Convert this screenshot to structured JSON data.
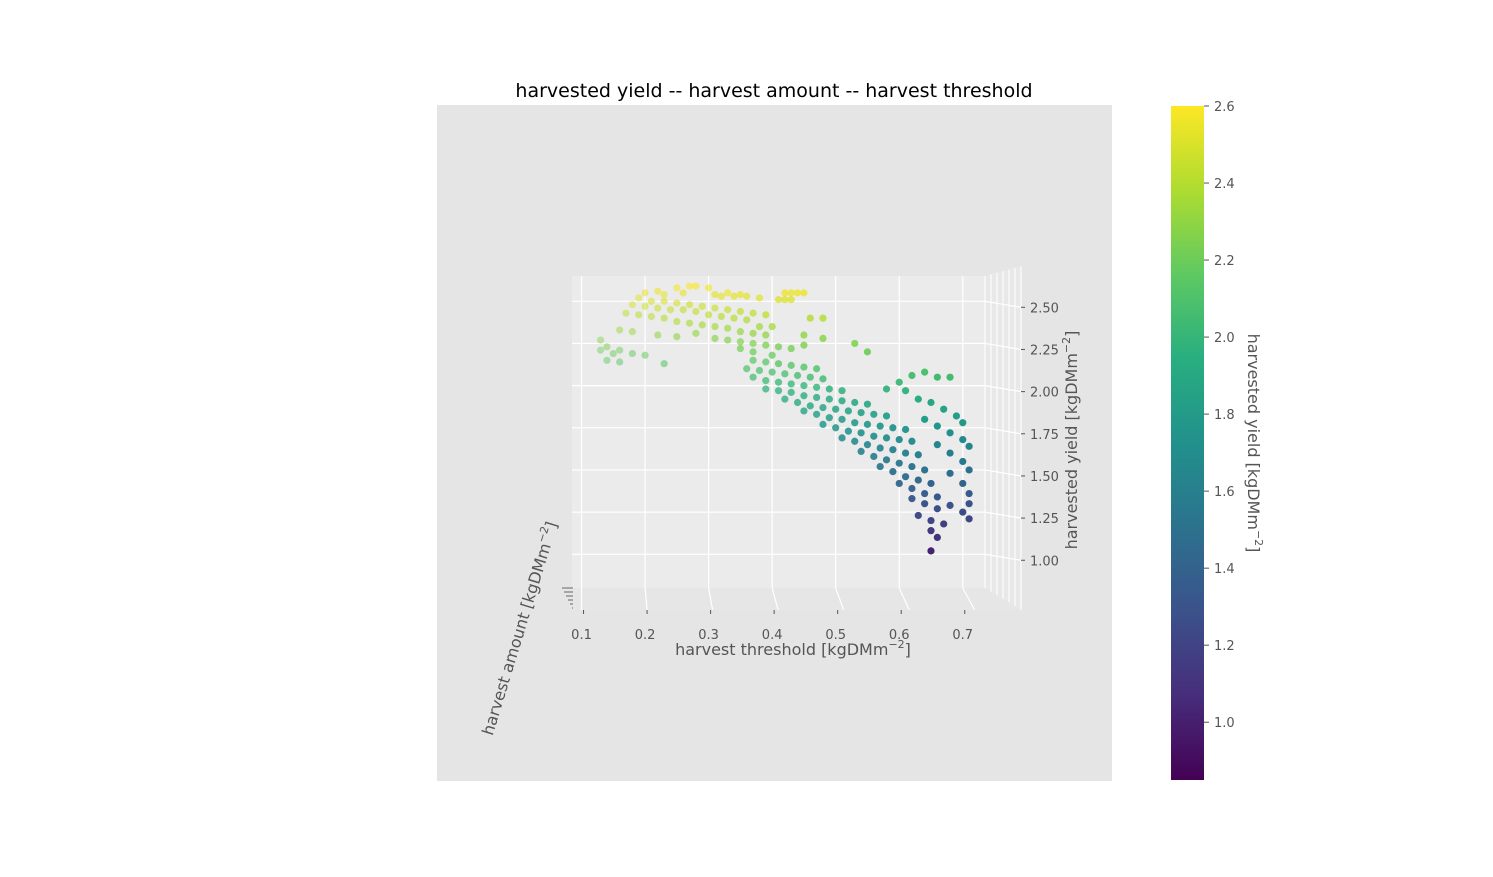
{
  "chart_data": {
    "type": "scatter",
    "projection": "3d",
    "title": "harvested yield -- harvest amount -- harvest threshold",
    "xlabel": "harvest threshold [kgDMm",
    "xlabel_exp": "−2",
    "xlabel_end": "]",
    "ylabel": "harvest amount [kgDMm",
    "ylabel_exp": "−2",
    "ylabel_end": "]",
    "zlabel": "harvested yield [kgDMm",
    "zlabel_exp": "−2",
    "zlabel_end": "]",
    "colorbar_label": "harvested yield [kgDMm",
    "colorbar_label_exp": "−2",
    "colorbar_label_end": "]",
    "x_ticks": [
      "0.1",
      "0.2",
      "0.3",
      "0.4",
      "0.5",
      "0.6",
      "0.7"
    ],
    "z_ticks": [
      "1.00",
      "1.25",
      "1.50",
      "1.75",
      "2.00",
      "2.25",
      "2.50"
    ],
    "colorbar_ticks": [
      "1.0",
      "1.2",
      "1.4",
      "1.6",
      "1.8",
      "2.0",
      "2.2",
      "2.4",
      "2.6"
    ],
    "xlim": [
      0.085,
      0.735
    ],
    "zlim": [
      0.8,
      2.65
    ],
    "colorbar_range": [
      0.85,
      2.6
    ],
    "colormap": "viridis",
    "grid": true,
    "background_color": "#e5e5e5",
    "points": [
      {
        "x": 0.25,
        "z": 2.58
      },
      {
        "x": 0.27,
        "z": 2.59
      },
      {
        "x": 0.28,
        "z": 2.59
      },
      {
        "x": 0.3,
        "z": 2.58
      },
      {
        "x": 0.22,
        "z": 2.56
      },
      {
        "x": 0.2,
        "z": 2.55
      },
      {
        "x": 0.23,
        "z": 2.54
      },
      {
        "x": 0.26,
        "z": 2.55
      },
      {
        "x": 0.32,
        "z": 2.53
      },
      {
        "x": 0.34,
        "z": 2.53
      },
      {
        "x": 0.36,
        "z": 2.53
      },
      {
        "x": 0.38,
        "z": 2.52
      },
      {
        "x": 0.31,
        "z": 2.54
      },
      {
        "x": 0.33,
        "z": 2.55
      },
      {
        "x": 0.35,
        "z": 2.54
      },
      {
        "x": 0.42,
        "z": 2.55
      },
      {
        "x": 0.43,
        "z": 2.55
      },
      {
        "x": 0.44,
        "z": 2.55
      },
      {
        "x": 0.45,
        "z": 2.55
      },
      {
        "x": 0.41,
        "z": 2.51
      },
      {
        "x": 0.42,
        "z": 2.51
      },
      {
        "x": 0.43,
        "z": 2.51
      },
      {
        "x": 0.19,
        "z": 2.52
      },
      {
        "x": 0.21,
        "z": 2.5
      },
      {
        "x": 0.23,
        "z": 2.5
      },
      {
        "x": 0.25,
        "z": 2.49
      },
      {
        "x": 0.27,
        "z": 2.48
      },
      {
        "x": 0.29,
        "z": 2.47
      },
      {
        "x": 0.31,
        "z": 2.46
      },
      {
        "x": 0.33,
        "z": 2.45
      },
      {
        "x": 0.35,
        "z": 2.44
      },
      {
        "x": 0.37,
        "z": 2.43
      },
      {
        "x": 0.39,
        "z": 2.42
      },
      {
        "x": 0.18,
        "z": 2.48
      },
      {
        "x": 0.2,
        "z": 2.47
      },
      {
        "x": 0.22,
        "z": 2.46
      },
      {
        "x": 0.24,
        "z": 2.45
      },
      {
        "x": 0.26,
        "z": 2.45
      },
      {
        "x": 0.28,
        "z": 2.44
      },
      {
        "x": 0.3,
        "z": 2.42
      },
      {
        "x": 0.32,
        "z": 2.41
      },
      {
        "x": 0.34,
        "z": 2.4
      },
      {
        "x": 0.36,
        "z": 2.39
      },
      {
        "x": 0.17,
        "z": 2.43
      },
      {
        "x": 0.19,
        "z": 2.42
      },
      {
        "x": 0.21,
        "z": 2.41
      },
      {
        "x": 0.23,
        "z": 2.4
      },
      {
        "x": 0.25,
        "z": 2.38
      },
      {
        "x": 0.27,
        "z": 2.37
      },
      {
        "x": 0.29,
        "z": 2.36
      },
      {
        "x": 0.31,
        "z": 2.35
      },
      {
        "x": 0.33,
        "z": 2.34
      },
      {
        "x": 0.35,
        "z": 2.32
      },
      {
        "x": 0.37,
        "z": 2.31
      },
      {
        "x": 0.39,
        "z": 2.3
      },
      {
        "x": 0.16,
        "z": 2.33
      },
      {
        "x": 0.18,
        "z": 2.32
      },
      {
        "x": 0.22,
        "z": 2.3
      },
      {
        "x": 0.25,
        "z": 2.29
      },
      {
        "x": 0.28,
        "z": 2.31
      },
      {
        "x": 0.31,
        "z": 2.28
      },
      {
        "x": 0.33,
        "z": 2.27
      },
      {
        "x": 0.35,
        "z": 2.26
      },
      {
        "x": 0.37,
        "z": 2.25
      },
      {
        "x": 0.39,
        "z": 2.24
      },
      {
        "x": 0.41,
        "z": 2.23
      },
      {
        "x": 0.43,
        "z": 2.22
      },
      {
        "x": 0.13,
        "z": 2.27
      },
      {
        "x": 0.14,
        "z": 2.23
      },
      {
        "x": 0.16,
        "z": 2.21
      },
      {
        "x": 0.18,
        "z": 2.19
      },
      {
        "x": 0.13,
        "z": 2.21
      },
      {
        "x": 0.15,
        "z": 2.19
      },
      {
        "x": 0.14,
        "z": 2.15
      },
      {
        "x": 0.16,
        "z": 2.14
      },
      {
        "x": 0.2,
        "z": 2.18
      },
      {
        "x": 0.23,
        "z": 2.13
      },
      {
        "x": 0.35,
        "z": 2.22
      },
      {
        "x": 0.37,
        "z": 2.2
      },
      {
        "x": 0.4,
        "z": 2.18
      },
      {
        "x": 0.45,
        "z": 2.24
      },
      {
        "x": 0.46,
        "z": 2.4
      },
      {
        "x": 0.48,
        "z": 2.4
      },
      {
        "x": 0.45,
        "z": 2.3
      },
      {
        "x": 0.48,
        "z": 2.28
      },
      {
        "x": 0.38,
        "z": 2.35
      },
      {
        "x": 0.4,
        "z": 2.35
      },
      {
        "x": 0.37,
        "z": 2.15
      },
      {
        "x": 0.39,
        "z": 2.14
      },
      {
        "x": 0.41,
        "z": 2.13
      },
      {
        "x": 0.43,
        "z": 2.12
      },
      {
        "x": 0.45,
        "z": 2.11
      },
      {
        "x": 0.47,
        "z": 2.1
      },
      {
        "x": 0.36,
        "z": 2.1
      },
      {
        "x": 0.38,
        "z": 2.09
      },
      {
        "x": 0.4,
        "z": 2.08
      },
      {
        "x": 0.42,
        "z": 2.07
      },
      {
        "x": 0.44,
        "z": 2.06
      },
      {
        "x": 0.46,
        "z": 2.05
      },
      {
        "x": 0.48,
        "z": 2.04
      },
      {
        "x": 0.37,
        "z": 2.05
      },
      {
        "x": 0.39,
        "z": 2.03
      },
      {
        "x": 0.41,
        "z": 2.02
      },
      {
        "x": 0.43,
        "z": 2.01
      },
      {
        "x": 0.45,
        "z": 2.0
      },
      {
        "x": 0.47,
        "z": 1.99
      },
      {
        "x": 0.49,
        "z": 1.98
      },
      {
        "x": 0.51,
        "z": 1.97
      },
      {
        "x": 0.39,
        "z": 1.98
      },
      {
        "x": 0.41,
        "z": 1.97
      },
      {
        "x": 0.43,
        "z": 1.96
      },
      {
        "x": 0.45,
        "z": 1.94
      },
      {
        "x": 0.47,
        "z": 1.93
      },
      {
        "x": 0.49,
        "z": 1.92
      },
      {
        "x": 0.51,
        "z": 1.91
      },
      {
        "x": 0.53,
        "z": 1.9
      },
      {
        "x": 0.55,
        "z": 1.89
      },
      {
        "x": 0.42,
        "z": 1.92
      },
      {
        "x": 0.44,
        "z": 1.9
      },
      {
        "x": 0.46,
        "z": 1.88
      },
      {
        "x": 0.48,
        "z": 1.87
      },
      {
        "x": 0.5,
        "z": 1.86
      },
      {
        "x": 0.52,
        "z": 1.85
      },
      {
        "x": 0.54,
        "z": 1.84
      },
      {
        "x": 0.56,
        "z": 1.83
      },
      {
        "x": 0.58,
        "z": 1.82
      },
      {
        "x": 0.45,
        "z": 1.85
      },
      {
        "x": 0.47,
        "z": 1.83
      },
      {
        "x": 0.49,
        "z": 1.81
      },
      {
        "x": 0.51,
        "z": 1.8
      },
      {
        "x": 0.53,
        "z": 1.78
      },
      {
        "x": 0.55,
        "z": 1.77
      },
      {
        "x": 0.57,
        "z": 1.76
      },
      {
        "x": 0.59,
        "z": 1.75
      },
      {
        "x": 0.61,
        "z": 1.74
      },
      {
        "x": 0.48,
        "z": 1.77
      },
      {
        "x": 0.5,
        "z": 1.75
      },
      {
        "x": 0.52,
        "z": 1.73
      },
      {
        "x": 0.54,
        "z": 1.72
      },
      {
        "x": 0.56,
        "z": 1.7
      },
      {
        "x": 0.58,
        "z": 1.69
      },
      {
        "x": 0.6,
        "z": 1.68
      },
      {
        "x": 0.62,
        "z": 1.67
      },
      {
        "x": 0.51,
        "z": 1.69
      },
      {
        "x": 0.53,
        "z": 1.67
      },
      {
        "x": 0.55,
        "z": 1.65
      },
      {
        "x": 0.57,
        "z": 1.63
      },
      {
        "x": 0.59,
        "z": 1.62
      },
      {
        "x": 0.61,
        "z": 1.6
      },
      {
        "x": 0.63,
        "z": 1.59
      },
      {
        "x": 0.54,
        "z": 1.61
      },
      {
        "x": 0.56,
        "z": 1.58
      },
      {
        "x": 0.58,
        "z": 1.56
      },
      {
        "x": 0.6,
        "z": 1.54
      },
      {
        "x": 0.62,
        "z": 1.52
      },
      {
        "x": 0.64,
        "z": 1.5
      },
      {
        "x": 0.57,
        "z": 1.52
      },
      {
        "x": 0.59,
        "z": 1.49
      },
      {
        "x": 0.61,
        "z": 1.46
      },
      {
        "x": 0.63,
        "z": 1.44
      },
      {
        "x": 0.65,
        "z": 1.42
      },
      {
        "x": 0.6,
        "z": 1.42
      },
      {
        "x": 0.62,
        "z": 1.39
      },
      {
        "x": 0.64,
        "z": 1.36
      },
      {
        "x": 0.66,
        "z": 1.34
      },
      {
        "x": 0.62,
        "z": 1.33
      },
      {
        "x": 0.64,
        "z": 1.3
      },
      {
        "x": 0.66,
        "z": 1.27
      },
      {
        "x": 0.68,
        "z": 1.29
      },
      {
        "x": 0.63,
        "z": 1.23
      },
      {
        "x": 0.65,
        "z": 1.2
      },
      {
        "x": 0.67,
        "z": 1.18
      },
      {
        "x": 0.65,
        "z": 1.14
      },
      {
        "x": 0.66,
        "z": 1.1
      },
      {
        "x": 0.65,
        "z": 1.02
      },
      {
        "x": 0.6,
        "z": 2.02
      },
      {
        "x": 0.62,
        "z": 2.06
      },
      {
        "x": 0.64,
        "z": 2.08
      },
      {
        "x": 0.66,
        "z": 2.05
      },
      {
        "x": 0.68,
        "z": 2.05
      },
      {
        "x": 0.58,
        "z": 1.98
      },
      {
        "x": 0.61,
        "z": 1.97
      },
      {
        "x": 0.53,
        "z": 2.25
      },
      {
        "x": 0.55,
        "z": 2.2
      },
      {
        "x": 0.63,
        "z": 1.92
      },
      {
        "x": 0.65,
        "z": 1.9
      },
      {
        "x": 0.67,
        "z": 1.86
      },
      {
        "x": 0.69,
        "z": 1.82
      },
      {
        "x": 0.7,
        "z": 1.78
      },
      {
        "x": 0.64,
        "z": 1.8
      },
      {
        "x": 0.66,
        "z": 1.76
      },
      {
        "x": 0.68,
        "z": 1.72
      },
      {
        "x": 0.7,
        "z": 1.68
      },
      {
        "x": 0.71,
        "z": 1.64
      },
      {
        "x": 0.66,
        "z": 1.65
      },
      {
        "x": 0.68,
        "z": 1.6
      },
      {
        "x": 0.7,
        "z": 1.55
      },
      {
        "x": 0.71,
        "z": 1.5
      },
      {
        "x": 0.68,
        "z": 1.48
      },
      {
        "x": 0.7,
        "z": 1.42
      },
      {
        "x": 0.71,
        "z": 1.36
      },
      {
        "x": 0.71,
        "z": 1.3
      },
      {
        "x": 0.7,
        "z": 1.25
      },
      {
        "x": 0.71,
        "z": 1.21
      }
    ]
  }
}
